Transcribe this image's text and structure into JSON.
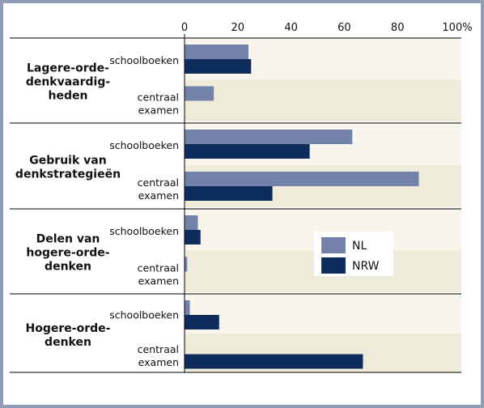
{
  "chart_data": {
    "type": "bar",
    "orientation": "horizontal",
    "xlim": [
      0,
      100
    ],
    "x_ticks": [
      "0",
      "20",
      "40",
      "60",
      "80",
      "100%"
    ],
    "legend_placement": "right-center",
    "groups": [
      {
        "label": [
          "Lagere-orde-",
          "denkvaardig-",
          "heden"
        ],
        "categories": [
          {
            "label": [
              "schoolboeken"
            ],
            "values": {
              "NL": 24,
              "NRW": 25
            }
          },
          {
            "label": [
              "centraal",
              "examen"
            ],
            "values": {
              "NL": 11,
              "NRW": 0
            }
          }
        ]
      },
      {
        "label": [
          "Gebruik van",
          "denkstrategieën"
        ],
        "categories": [
          {
            "label": [
              "schoolboeken"
            ],
            "values": {
              "NL": 63,
              "NRW": 47
            }
          },
          {
            "label": [
              "centraal",
              "examen"
            ],
            "values": {
              "NL": 88,
              "NRW": 33
            }
          }
        ]
      },
      {
        "label": [
          "Delen van",
          "hogere-orde-",
          "denken"
        ],
        "categories": [
          {
            "label": [
              "schoolboeken"
            ],
            "values": {
              "NL": 5,
              "NRW": 6
            }
          },
          {
            "label": [
              "centraal",
              "examen"
            ],
            "values": {
              "NL": 1,
              "NRW": 0
            }
          }
        ]
      },
      {
        "label": [
          "Hogere-orde-",
          "denken"
        ],
        "categories": [
          {
            "label": [
              "schoolboeken"
            ],
            "values": {
              "NL": 2,
              "NRW": 13
            }
          },
          {
            "label": [
              "centraal",
              "examen"
            ],
            "values": {
              "NL": 0,
              "NRW": 67
            }
          }
        ]
      }
    ],
    "series": [
      {
        "name": "NL",
        "color": "#7382a8"
      },
      {
        "name": "NRW",
        "color": "#0e2d5c"
      }
    ],
    "colors": {
      "band_light": "#f8f5ec",
      "band_dark": "#efebda",
      "frame": "#8f9bb8"
    }
  }
}
